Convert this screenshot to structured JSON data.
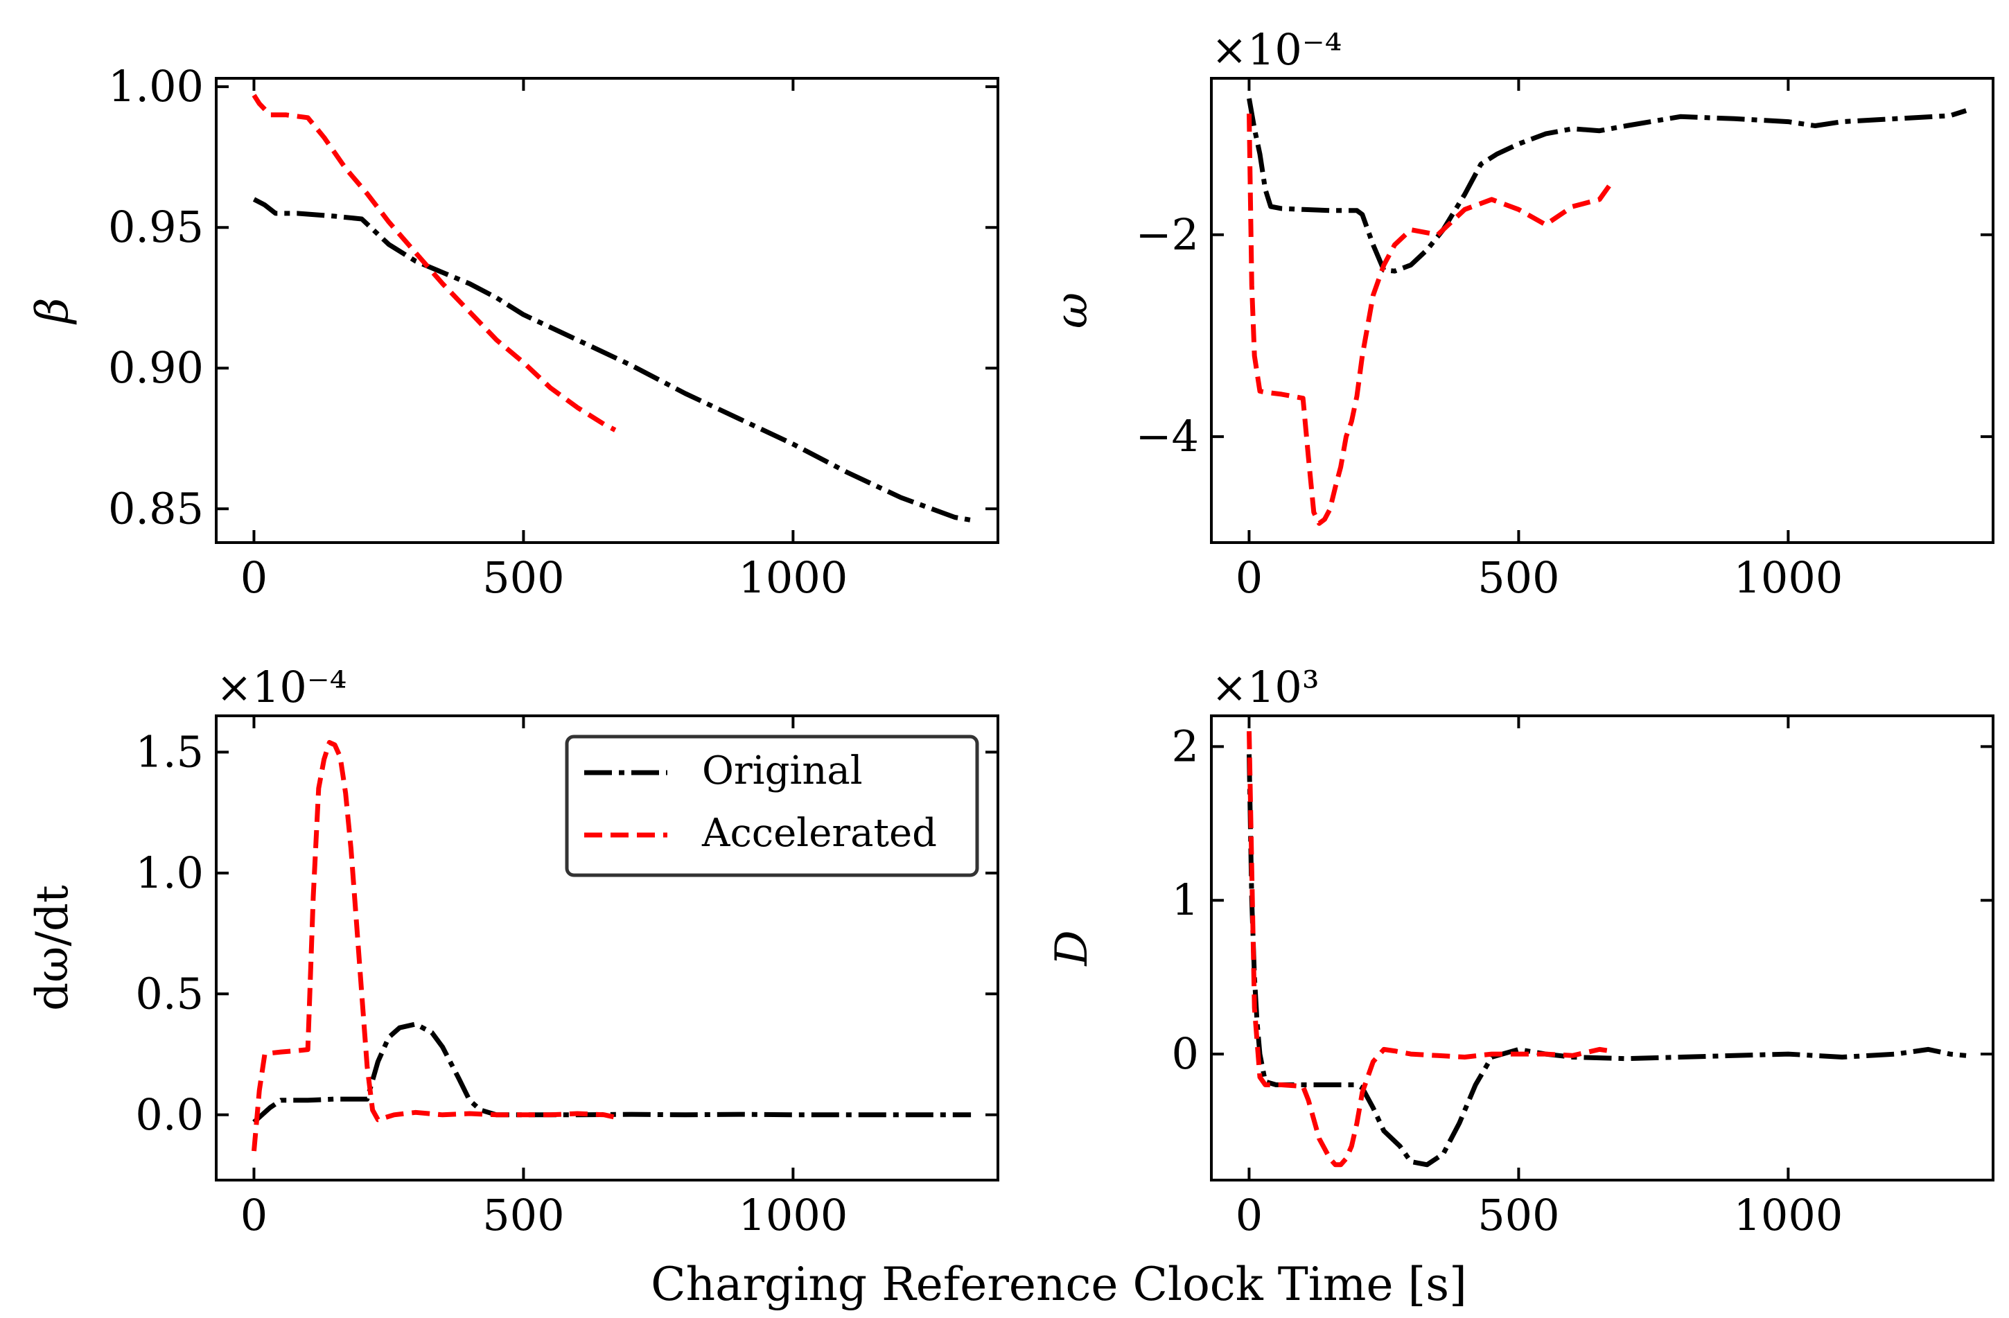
{
  "figure": {
    "xlabel": "Charging Reference Clock Time [s]"
  },
  "legend": {
    "entries": [
      {
        "label": "Original",
        "color": "#000000",
        "style": "dashdot"
      },
      {
        "label": "Accelerated",
        "color": "#ff0000",
        "style": "dashed"
      }
    ]
  },
  "chart_data": [
    {
      "type": "line",
      "title": "",
      "xlabel": "",
      "ylabel": "β",
      "offset_text": "",
      "xlim": [
        -70,
        1380
      ],
      "ylim": [
        0.838,
        1.003
      ],
      "xticks": [
        0,
        500,
        1000
      ],
      "xtick_labels": [
        "0",
        "500",
        "1000"
      ],
      "yticks": [
        0.85,
        0.9,
        0.95,
        1.0
      ],
      "ytick_labels": [
        "0.85",
        "0.90",
        "0.95",
        "1.00"
      ],
      "series": [
        {
          "name": "Original",
          "color": "#000000",
          "style": "dashdot",
          "x": [
            0,
            20,
            40,
            80,
            150,
            200,
            250,
            300,
            350,
            400,
            450,
            500,
            600,
            700,
            800,
            900,
            1000,
            1100,
            1200,
            1300,
            1330
          ],
          "y": [
            0.96,
            0.958,
            0.955,
            0.955,
            0.954,
            0.953,
            0.944,
            0.938,
            0.934,
            0.93,
            0.925,
            0.919,
            0.91,
            0.901,
            0.891,
            0.882,
            0.873,
            0.863,
            0.854,
            0.847,
            0.846
          ]
        },
        {
          "name": "Accelerated",
          "color": "#ff0000",
          "style": "dashed",
          "x": [
            0,
            10,
            30,
            60,
            100,
            130,
            170,
            210,
            250,
            300,
            350,
            400,
            450,
            500,
            550,
            600,
            650,
            670
          ],
          "y": [
            0.997,
            0.994,
            0.99,
            0.99,
            0.989,
            0.982,
            0.971,
            0.962,
            0.952,
            0.941,
            0.93,
            0.92,
            0.91,
            0.902,
            0.893,
            0.886,
            0.88,
            0.878
          ]
        }
      ]
    },
    {
      "type": "line",
      "title": "",
      "xlabel": "",
      "ylabel": "ω",
      "offset_text": "×10⁻⁴",
      "xlim": [
        -70,
        1380
      ],
      "ylim": [
        -5.05,
        -0.45
      ],
      "xticks": [
        0,
        500,
        1000
      ],
      "xtick_labels": [
        "0",
        "500",
        "1000"
      ],
      "yticks": [
        -4,
        -2
      ],
      "ytick_labels": [
        "−4",
        "−2"
      ],
      "series": [
        {
          "name": "Original",
          "color": "#000000",
          "style": "dashdot",
          "x": [
            0,
            10,
            20,
            30,
            40,
            60,
            100,
            150,
            200,
            210,
            230,
            250,
            270,
            300,
            330,
            360,
            400,
            430,
            460,
            500,
            550,
            600,
            650,
            700,
            800,
            900,
            1000,
            1050,
            1100,
            1200,
            1300,
            1330
          ],
          "y": [
            -0.65,
            -0.95,
            -1.2,
            -1.55,
            -1.72,
            -1.74,
            -1.75,
            -1.76,
            -1.76,
            -1.8,
            -2.1,
            -2.35,
            -2.36,
            -2.3,
            -2.15,
            -1.95,
            -1.6,
            -1.3,
            -1.2,
            -1.1,
            -1.0,
            -0.95,
            -0.97,
            -0.92,
            -0.83,
            -0.85,
            -0.88,
            -0.92,
            -0.88,
            -0.85,
            -0.82,
            -0.77
          ]
        },
        {
          "name": "Accelerated",
          "color": "#ff0000",
          "style": "dashed",
          "x": [
            0,
            5,
            10,
            20,
            30,
            60,
            80,
            100,
            110,
            120,
            130,
            140,
            150,
            160,
            170,
            180,
            190,
            200,
            210,
            230,
            250,
            270,
            300,
            350,
            400,
            450,
            500,
            550,
            600,
            650,
            670
          ],
          "y": [
            -0.8,
            -2.5,
            -3.2,
            -3.55,
            -3.56,
            -3.58,
            -3.6,
            -3.62,
            -4.2,
            -4.75,
            -4.86,
            -4.82,
            -4.72,
            -4.5,
            -4.3,
            -4.0,
            -3.85,
            -3.6,
            -3.2,
            -2.6,
            -2.3,
            -2.1,
            -1.95,
            -2.0,
            -1.75,
            -1.65,
            -1.75,
            -1.9,
            -1.72,
            -1.65,
            -1.5
          ]
        }
      ]
    },
    {
      "type": "line",
      "title": "",
      "xlabel": "",
      "ylabel": "dω/dt",
      "offset_text": "×10⁻⁴",
      "xlim": [
        -70,
        1380
      ],
      "ylim": [
        -0.27,
        1.65
      ],
      "xticks": [
        0,
        500,
        1000
      ],
      "xtick_labels": [
        "0",
        "500",
        "1000"
      ],
      "yticks": [
        0.0,
        0.5,
        1.0,
        1.5
      ],
      "ytick_labels": [
        "0.0",
        "0.5",
        "1.0",
        "1.5"
      ],
      "series": [
        {
          "name": "Original",
          "color": "#000000",
          "style": "dashdot",
          "x": [
            0,
            15,
            30,
            50,
            100,
            150,
            210,
            230,
            250,
            270,
            300,
            330,
            350,
            380,
            400,
            420,
            450,
            500,
            600,
            700,
            800,
            900,
            1000,
            1100,
            1200,
            1300,
            1330
          ],
          "y": [
            -0.03,
            0.0,
            0.03,
            0.06,
            0.06,
            0.065,
            0.065,
            0.22,
            0.32,
            0.36,
            0.375,
            0.34,
            0.28,
            0.15,
            0.06,
            0.02,
            0.0,
            0.0,
            0.0,
            0.002,
            0.0,
            0.002,
            0.0,
            0.0,
            0.0,
            0.0,
            0.0
          ]
        },
        {
          "name": "Accelerated",
          "color": "#ff0000",
          "style": "dashed",
          "x": [
            0,
            10,
            20,
            30,
            50,
            80,
            100,
            110,
            120,
            130,
            140,
            150,
            160,
            170,
            180,
            190,
            200,
            210,
            220,
            230,
            260,
            300,
            350,
            400,
            450,
            500,
            550,
            600,
            650,
            670
          ],
          "y": [
            -0.15,
            0.1,
            0.25,
            0.255,
            0.26,
            0.265,
            0.27,
            0.9,
            1.35,
            1.47,
            1.54,
            1.53,
            1.48,
            1.33,
            1.1,
            0.8,
            0.5,
            0.2,
            0.02,
            -0.02,
            0.0,
            0.01,
            0.0,
            0.005,
            0.0,
            0.0,
            0.0,
            0.005,
            0.0,
            -0.01
          ]
        }
      ]
    },
    {
      "type": "line",
      "title": "",
      "xlabel": "",
      "ylabel": "D",
      "offset_text": "×10³",
      "xlim": [
        -70,
        1380
      ],
      "ylim": [
        -0.82,
        2.2
      ],
      "xticks": [
        0,
        500,
        1000
      ],
      "xtick_labels": [
        "0",
        "500",
        "1000"
      ],
      "yticks": [
        0,
        1,
        2
      ],
      "ytick_labels": [
        "0",
        "1",
        "2"
      ],
      "series": [
        {
          "name": "Original",
          "color": "#000000",
          "style": "dashdot",
          "x": [
            0,
            5,
            10,
            15,
            20,
            30,
            50,
            100,
            150,
            200,
            210,
            230,
            250,
            280,
            300,
            330,
            360,
            390,
            420,
            450,
            500,
            550,
            600,
            700,
            800,
            900,
            1000,
            1100,
            1200,
            1260,
            1300,
            1330
          ],
          "y": [
            1.95,
            1.0,
            0.5,
            0.2,
            0.0,
            -0.18,
            -0.2,
            -0.2,
            -0.2,
            -0.2,
            -0.22,
            -0.35,
            -0.5,
            -0.6,
            -0.7,
            -0.72,
            -0.65,
            -0.45,
            -0.2,
            -0.02,
            0.03,
            0.0,
            -0.02,
            -0.03,
            -0.02,
            -0.01,
            0.0,
            -0.02,
            0.0,
            0.03,
            0.0,
            -0.01
          ]
        },
        {
          "name": "Accelerated",
          "color": "#ff0000",
          "style": "dashed",
          "x": [
            0,
            5,
            10,
            20,
            30,
            60,
            100,
            110,
            130,
            150,
            160,
            170,
            180,
            190,
            200,
            210,
            230,
            250,
            270,
            300,
            350,
            400,
            450,
            500,
            550,
            600,
            650,
            670
          ],
          "y": [
            2.1,
            1.2,
            0.3,
            -0.15,
            -0.2,
            -0.2,
            -0.21,
            -0.3,
            -0.55,
            -0.68,
            -0.72,
            -0.72,
            -0.68,
            -0.6,
            -0.45,
            -0.25,
            -0.05,
            0.03,
            0.02,
            0.0,
            -0.01,
            -0.02,
            0.0,
            0.0,
            0.0,
            -0.01,
            0.03,
            0.02
          ]
        }
      ]
    }
  ]
}
